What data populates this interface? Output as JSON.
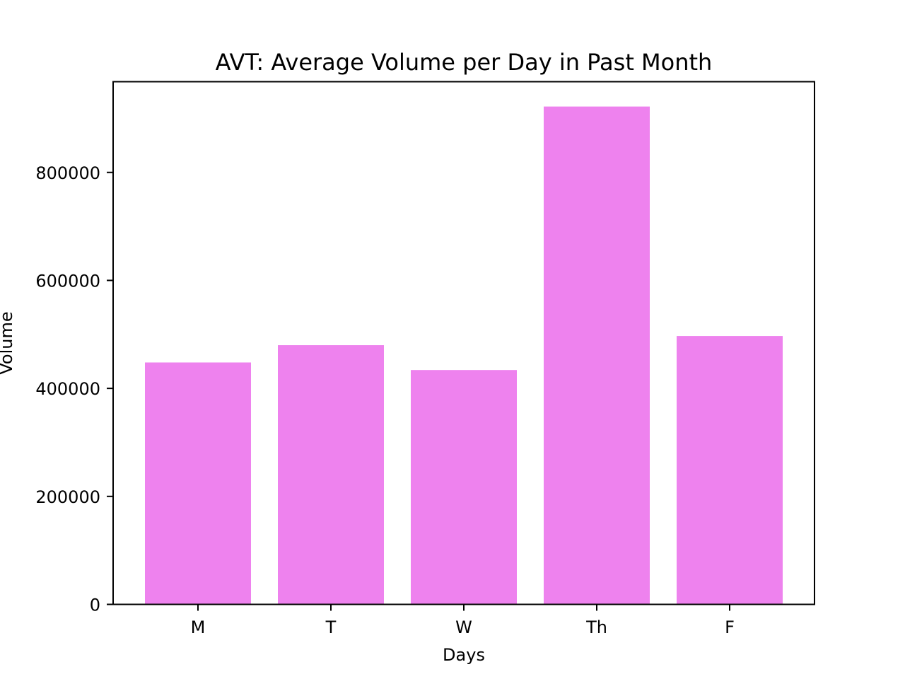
{
  "chart_data": {
    "type": "bar",
    "title": "AVT: Average Volume per Day in Past Month",
    "xlabel": "Days",
    "ylabel": "Volume",
    "categories": [
      "M",
      "T",
      "W",
      "Th",
      "F"
    ],
    "values": [
      448000,
      480000,
      434000,
      922000,
      497000
    ],
    "ylim": [
      0,
      968000
    ],
    "yticks": [
      0,
      200000,
      400000,
      600000,
      800000
    ],
    "ytick_labels": [
      "0",
      "200000",
      "400000",
      "600000",
      "800000"
    ],
    "bar_color": "#ee82ee",
    "grid": false,
    "legend": "none"
  }
}
